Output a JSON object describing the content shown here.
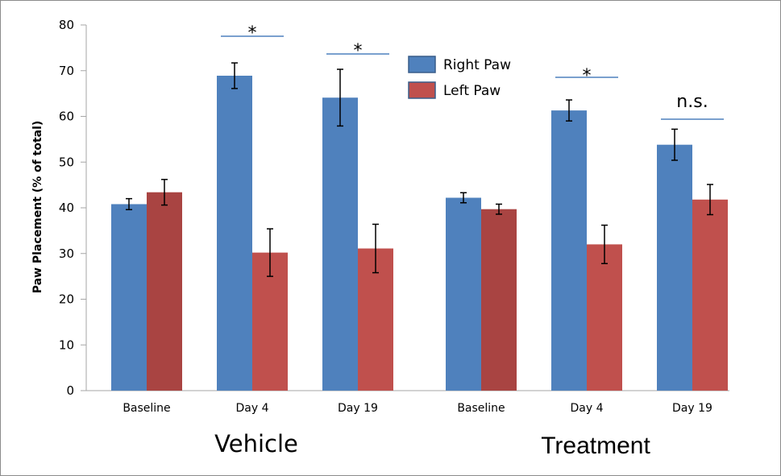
{
  "chart_data": {
    "type": "bar",
    "title": "",
    "xlabel": "",
    "ylabel": "Paw Placement (% of total)",
    "ylim": [
      0,
      80
    ],
    "yticks": [
      0,
      10,
      20,
      30,
      40,
      50,
      60,
      70,
      80
    ],
    "grid": false,
    "legend_position": "top-center",
    "groups": [
      {
        "name": "Vehicle",
        "categories": [
          "Baseline",
          "Day 4",
          "Day 19"
        ]
      },
      {
        "name": "Treatment",
        "categories": [
          "Baseline",
          "Day 4",
          "Day 19"
        ]
      }
    ],
    "categories": [
      "Baseline",
      "Day 4",
      "Day 19",
      "Baseline",
      "Day 4",
      "Day 19"
    ],
    "series": [
      {
        "name": "Right Paw",
        "color": "#4f81bd",
        "values": [
          40.8,
          68.9,
          64.1,
          42.2,
          61.3,
          53.8
        ],
        "error": [
          1.2,
          2.8,
          6.2,
          1.1,
          2.3,
          3.4
        ]
      },
      {
        "name": "Left Paw",
        "color": "#c0504d",
        "alt_color": "#a94442",
        "values": [
          43.4,
          30.2,
          31.1,
          39.7,
          32.0,
          41.8
        ],
        "error": [
          2.8,
          5.2,
          5.3,
          1.1,
          4.2,
          3.3
        ]
      }
    ],
    "annotations": [
      {
        "text": "*",
        "category_index": 1
      },
      {
        "text": "*",
        "category_index": 2
      },
      {
        "text": "*",
        "category_index": 4
      },
      {
        "text": "n.s.",
        "category_index": 5
      }
    ]
  }
}
